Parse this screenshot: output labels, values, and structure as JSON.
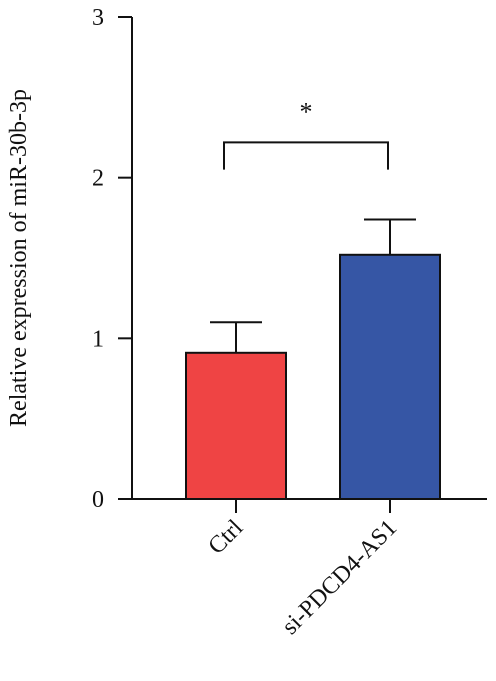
{
  "chart_data": {
    "type": "bar",
    "categories": [
      "Ctrl",
      "si-PDCD4-AS1"
    ],
    "values": [
      0.91,
      1.52
    ],
    "errors": [
      0.19,
      0.22
    ],
    "colors": [
      "#ef4444",
      "#3656a5"
    ],
    "ylabel": "Relative expression of miR-30b-3p",
    "xlabel": "",
    "ylim": [
      0,
      3
    ],
    "yticks": [
      "0",
      "1",
      "2",
      "3"
    ],
    "grid": false,
    "significance": {
      "between": [
        0,
        1
      ],
      "label": "*",
      "level": 2.05
    }
  }
}
